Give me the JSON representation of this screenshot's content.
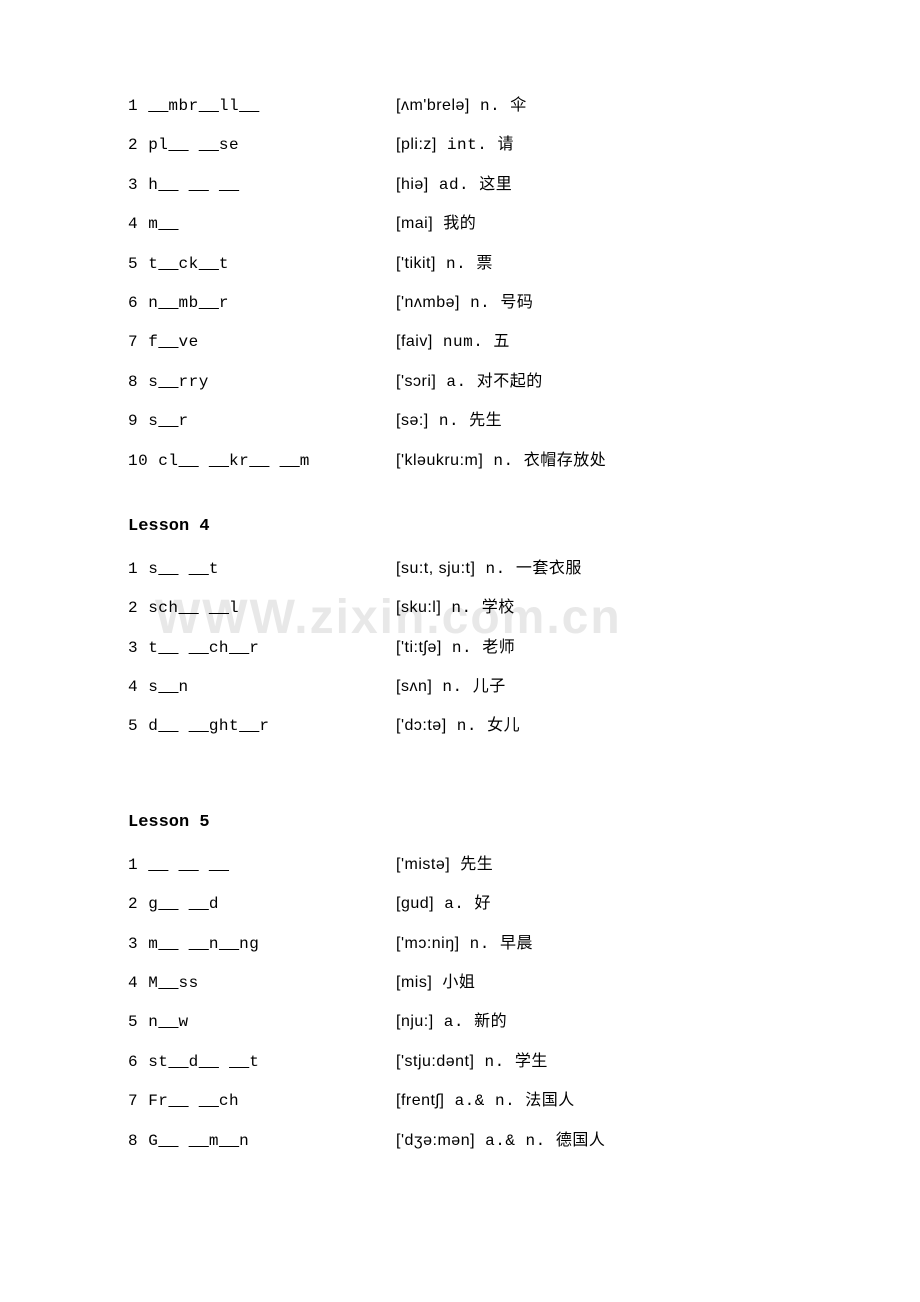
{
  "watermark": "WWW.zixin.com.cn",
  "lesson3": {
    "items": [
      {
        "num": "1",
        "word": "__mbr__ll__",
        "phonetic": "[ʌm'brelə]",
        "pos": "n.",
        "meaning": "伞"
      },
      {
        "num": "2",
        "word": "pl__ __se",
        "phonetic": "[pli:z]",
        "pos": "int.",
        "meaning": "请"
      },
      {
        "num": "3",
        "word": "h__ __ __",
        "phonetic": "[hiə]",
        "pos": "ad.",
        "meaning": "这里"
      },
      {
        "num": "4",
        "word": "m__",
        "phonetic": "[mai]",
        "pos": "",
        "meaning": "我的"
      },
      {
        "num": "5",
        "word": "t__ck__t",
        "phonetic": "['tikit]",
        "pos": "n.",
        "meaning": "票"
      },
      {
        "num": "6",
        "word": "n__mb__r",
        "phonetic": "['nʌmbə]",
        "pos": "n.",
        "meaning": "号码"
      },
      {
        "num": "7",
        "word": "f__ve",
        "phonetic": "[faiv]",
        "pos": "num.",
        "meaning": "五"
      },
      {
        "num": "8",
        "word": "s__rry",
        "phonetic": "['sɔri]",
        "pos": "a.",
        "meaning": "对不起的"
      },
      {
        "num": "9",
        "word": "s__r",
        "phonetic": "[sə:]",
        "pos": "n.",
        "meaning": "先生"
      },
      {
        "num": "10",
        "word": "cl__ __kr__ __m",
        "phonetic": "['kləukru:m]",
        "pos": "n.",
        "meaning": "衣帽存放处"
      }
    ]
  },
  "lesson4": {
    "title": "Lesson 4",
    "items": [
      {
        "num": "1",
        "word": "s__ __t",
        "phonetic": "[su:t, sju:t]",
        "pos": "n.",
        "meaning": "一套衣服"
      },
      {
        "num": "2",
        "word": "sch__ __l",
        "phonetic": "[sku:l]",
        "pos": "n.",
        "meaning": "学校"
      },
      {
        "num": "3",
        "word": "t__ __ch__r",
        "phonetic": "['ti:tʃə]",
        "pos": "n.",
        "meaning": "老师"
      },
      {
        "num": "4",
        "word": "s__n",
        "phonetic": "[sʌn]",
        "pos": "n.",
        "meaning": "儿子"
      },
      {
        "num": "5",
        "word": "d__ __ght__r",
        "phonetic": "['dɔ:tə]",
        "pos": "n.",
        "meaning": "女儿"
      }
    ]
  },
  "lesson5": {
    "title": "Lesson 5",
    "items": [
      {
        "num": "1",
        "word": "__ __ __",
        "phonetic": "['mistə]",
        "pos": "",
        "meaning": "先生"
      },
      {
        "num": "2",
        "word": "g__ __d",
        "phonetic": "[gud]",
        "pos": "a.",
        "meaning": "好"
      },
      {
        "num": "3",
        "word": "m__ __n__ng",
        "phonetic": "['mɔ:niŋ]",
        "pos": "n.",
        "meaning": "早晨"
      },
      {
        "num": "4",
        "word": "M__ss",
        "phonetic": "[mis]",
        "pos": "",
        "meaning": "小姐"
      },
      {
        "num": "5",
        "word": "n__w",
        "phonetic": "[nju:]",
        "pos": "a.",
        "meaning": "新的"
      },
      {
        "num": "6",
        "word": "st__d__ __t",
        "phonetic": "['stju:dənt]",
        "pos": "n.",
        "meaning": "学生"
      },
      {
        "num": "7",
        "word": "Fr__ __ch",
        "phonetic": "[frentʃ]",
        "pos": "a.& n.",
        "meaning": "法国人"
      },
      {
        "num": "8",
        "word": "G__ __m__n",
        "phonetic": "['dʒə:mən]",
        "pos": "a.& n.",
        "meaning": "德国人"
      }
    ]
  }
}
